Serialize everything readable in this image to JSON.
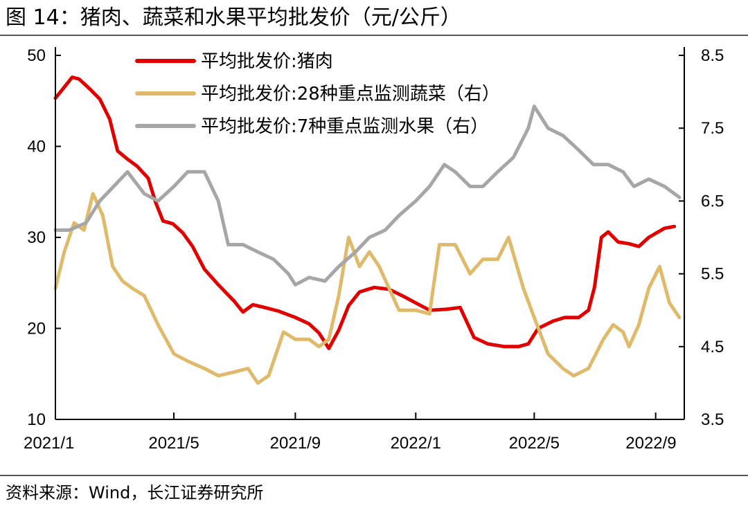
{
  "header": {
    "title": "图 14：猪肉、蔬菜和水果平均批发价（元/公斤）"
  },
  "footer": {
    "source": "资料来源：Wind，长江证券研究所"
  },
  "chart_data": {
    "type": "line",
    "title": "图 14：猪肉、蔬菜和水果平均批发价（元/公斤）",
    "x_axis": {
      "type": "date",
      "range": [
        "2021-01-01",
        "2022-09-30"
      ],
      "tick_labels": [
        "2021/1",
        "2021/5",
        "2021/9",
        "2022/1",
        "2022/5",
        "2022/9"
      ],
      "tick_dates": [
        "2021-01-01",
        "2021-05-01",
        "2021-09-01",
        "2022-01-01",
        "2022-05-01",
        "2022-09-01"
      ]
    },
    "y_left": {
      "range": [
        10,
        50
      ],
      "ticks": [
        "10",
        "20",
        "30",
        "40",
        "50"
      ]
    },
    "y_right": {
      "range": [
        3.5,
        8.5
      ],
      "ticks": [
        "3.5",
        "4.5",
        "5.5",
        "6.5",
        "7.5",
        "8.5"
      ]
    },
    "grid": false,
    "legend": {
      "position": "top-center"
    },
    "series": [
      {
        "name": "平均批发价:猪肉",
        "axis": "left",
        "color": "#e00000",
        "points": [
          [
            "2021-01-01",
            45.3
          ],
          [
            "2021-01-10",
            46.5
          ],
          [
            "2021-01-18",
            47.6
          ],
          [
            "2021-01-25",
            47.4
          ],
          [
            "2021-02-05",
            46.3
          ],
          [
            "2021-02-15",
            45.2
          ],
          [
            "2021-02-25",
            43.0
          ],
          [
            "2021-03-05",
            39.5
          ],
          [
            "2021-03-15",
            38.6
          ],
          [
            "2021-03-25",
            37.8
          ],
          [
            "2021-04-05",
            36.5
          ],
          [
            "2021-04-12",
            34.0
          ],
          [
            "2021-04-20",
            31.8
          ],
          [
            "2021-04-30",
            31.5
          ],
          [
            "2021-05-10",
            30.5
          ],
          [
            "2021-05-20",
            29.0
          ],
          [
            "2021-06-01",
            26.5
          ],
          [
            "2021-06-15",
            24.8
          ],
          [
            "2021-07-01",
            23.0
          ],
          [
            "2021-07-10",
            21.8
          ],
          [
            "2021-07-20",
            22.6
          ],
          [
            "2021-08-01",
            22.3
          ],
          [
            "2021-08-15",
            21.9
          ],
          [
            "2021-09-01",
            21.2
          ],
          [
            "2021-09-15",
            20.5
          ],
          [
            "2021-09-25",
            19.5
          ],
          [
            "2021-10-05",
            17.8
          ],
          [
            "2021-10-15",
            19.8
          ],
          [
            "2021-10-25",
            22.5
          ],
          [
            "2021-11-05",
            24.0
          ],
          [
            "2021-11-20",
            24.5
          ],
          [
            "2021-12-05",
            24.3
          ],
          [
            "2021-12-20",
            23.5
          ],
          [
            "2022-01-01",
            22.8
          ],
          [
            "2022-01-15",
            22.0
          ],
          [
            "2022-02-01",
            22.1
          ],
          [
            "2022-02-15",
            22.3
          ],
          [
            "2022-03-01",
            19.0
          ],
          [
            "2022-03-15",
            18.3
          ],
          [
            "2022-04-01",
            18.0
          ],
          [
            "2022-04-15",
            18.0
          ],
          [
            "2022-04-25",
            18.3
          ],
          [
            "2022-05-05",
            20.0
          ],
          [
            "2022-05-20",
            20.8
          ],
          [
            "2022-06-01",
            21.2
          ],
          [
            "2022-06-15",
            21.2
          ],
          [
            "2022-06-25",
            22.0
          ],
          [
            "2022-07-01",
            24.5
          ],
          [
            "2022-07-08",
            30.0
          ],
          [
            "2022-07-15",
            30.6
          ],
          [
            "2022-07-25",
            29.5
          ],
          [
            "2022-08-05",
            29.3
          ],
          [
            "2022-08-15",
            29.0
          ],
          [
            "2022-08-25",
            30.0
          ],
          [
            "2022-09-10",
            31.0
          ],
          [
            "2022-09-20",
            31.2
          ]
        ]
      },
      {
        "name": "平均批发价:28种重点监测蔬菜（右）",
        "axis": "right",
        "color": "#dfba6b",
        "points": [
          [
            "2021-01-01",
            5.3
          ],
          [
            "2021-01-10",
            5.8
          ],
          [
            "2021-01-20",
            6.2
          ],
          [
            "2021-01-30",
            6.1
          ],
          [
            "2021-02-08",
            6.6
          ],
          [
            "2021-02-18",
            6.3
          ],
          [
            "2021-02-28",
            5.6
          ],
          [
            "2021-03-10",
            5.4
          ],
          [
            "2021-03-20",
            5.3
          ],
          [
            "2021-04-01",
            5.2
          ],
          [
            "2021-04-15",
            4.8
          ],
          [
            "2021-05-01",
            4.4
          ],
          [
            "2021-05-15",
            4.3
          ],
          [
            "2021-06-01",
            4.2
          ],
          [
            "2021-06-15",
            4.1
          ],
          [
            "2021-07-01",
            4.15
          ],
          [
            "2021-07-15",
            4.2
          ],
          [
            "2021-07-25",
            4.0
          ],
          [
            "2021-08-05",
            4.1
          ],
          [
            "2021-08-20",
            4.7
          ],
          [
            "2021-09-01",
            4.6
          ],
          [
            "2021-09-15",
            4.6
          ],
          [
            "2021-09-25",
            4.5
          ],
          [
            "2021-10-05",
            4.6
          ],
          [
            "2021-10-15",
            5.2
          ],
          [
            "2021-10-25",
            6.0
          ],
          [
            "2021-11-05",
            5.6
          ],
          [
            "2021-11-15",
            5.8
          ],
          [
            "2021-11-25",
            5.6
          ],
          [
            "2021-12-05",
            5.3
          ],
          [
            "2021-12-15",
            5.0
          ],
          [
            "2022-01-01",
            5.0
          ],
          [
            "2022-01-15",
            4.95
          ],
          [
            "2022-01-25",
            5.9
          ],
          [
            "2022-02-10",
            5.9
          ],
          [
            "2022-02-25",
            5.5
          ],
          [
            "2022-03-10",
            5.7
          ],
          [
            "2022-03-25",
            5.7
          ],
          [
            "2022-04-05",
            6.0
          ],
          [
            "2022-04-20",
            5.3
          ],
          [
            "2022-05-01",
            4.9
          ],
          [
            "2022-05-15",
            4.4
          ],
          [
            "2022-05-30",
            4.2
          ],
          [
            "2022-06-10",
            4.1
          ],
          [
            "2022-06-25",
            4.2
          ],
          [
            "2022-07-10",
            4.6
          ],
          [
            "2022-07-20",
            4.8
          ],
          [
            "2022-07-30",
            4.7
          ],
          [
            "2022-08-05",
            4.5
          ],
          [
            "2022-08-15",
            4.8
          ],
          [
            "2022-08-25",
            5.3
          ],
          [
            "2022-09-05",
            5.6
          ],
          [
            "2022-09-15",
            5.1
          ],
          [
            "2022-09-25",
            4.9
          ]
        ]
      },
      {
        "name": "平均批发价:7种重点监测水果（右）",
        "axis": "right",
        "color": "#a6a6a6",
        "points": [
          [
            "2021-01-01",
            6.1
          ],
          [
            "2021-01-15",
            6.1
          ],
          [
            "2021-02-01",
            6.2
          ],
          [
            "2021-02-15",
            6.5
          ],
          [
            "2021-03-01",
            6.7
          ],
          [
            "2021-03-15",
            6.9
          ],
          [
            "2021-04-01",
            6.6
          ],
          [
            "2021-04-15",
            6.5
          ],
          [
            "2021-05-01",
            6.7
          ],
          [
            "2021-05-15",
            6.9
          ],
          [
            "2021-06-01",
            6.9
          ],
          [
            "2021-06-15",
            6.5
          ],
          [
            "2021-06-25",
            5.9
          ],
          [
            "2021-07-10",
            5.9
          ],
          [
            "2021-07-25",
            5.8
          ],
          [
            "2021-08-10",
            5.7
          ],
          [
            "2021-08-25",
            5.5
          ],
          [
            "2021-09-01",
            5.35
          ],
          [
            "2021-09-15",
            5.45
          ],
          [
            "2021-10-01",
            5.4
          ],
          [
            "2021-10-15",
            5.6
          ],
          [
            "2021-11-01",
            5.8
          ],
          [
            "2021-11-15",
            6.0
          ],
          [
            "2021-12-01",
            6.1
          ],
          [
            "2021-12-15",
            6.3
          ],
          [
            "2022-01-01",
            6.5
          ],
          [
            "2022-01-15",
            6.7
          ],
          [
            "2022-01-30",
            7.0
          ],
          [
            "2022-02-10",
            6.9
          ],
          [
            "2022-02-25",
            6.7
          ],
          [
            "2022-03-10",
            6.7
          ],
          [
            "2022-03-25",
            6.9
          ],
          [
            "2022-04-10",
            7.1
          ],
          [
            "2022-04-25",
            7.5
          ],
          [
            "2022-05-01",
            7.8
          ],
          [
            "2022-05-15",
            7.5
          ],
          [
            "2022-05-30",
            7.4
          ],
          [
            "2022-06-15",
            7.2
          ],
          [
            "2022-06-30",
            7.0
          ],
          [
            "2022-07-15",
            7.0
          ],
          [
            "2022-07-30",
            6.9
          ],
          [
            "2022-08-10",
            6.7
          ],
          [
            "2022-08-25",
            6.8
          ],
          [
            "2022-09-10",
            6.7
          ],
          [
            "2022-09-25",
            6.55
          ]
        ]
      }
    ]
  }
}
